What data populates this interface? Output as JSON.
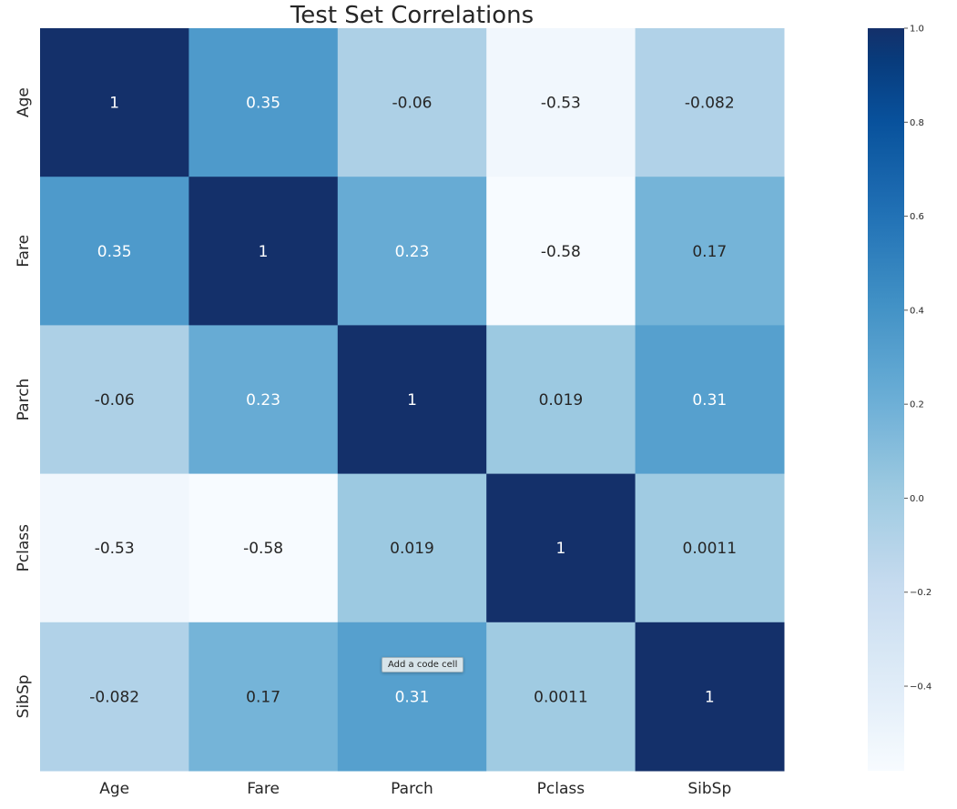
{
  "chart_data": {
    "type": "heatmap",
    "title": "Test Set Correlations",
    "rows": [
      "Age",
      "Fare",
      "Parch",
      "Pclass",
      "SibSp"
    ],
    "columns": [
      "Age",
      "Fare",
      "Parch",
      "Pclass",
      "SibSp"
    ],
    "values": [
      [
        1,
        0.35,
        -0.06,
        -0.53,
        -0.082
      ],
      [
        0.35,
        1,
        0.23,
        -0.58,
        0.17
      ],
      [
        -0.06,
        0.23,
        1,
        0.019,
        0.31
      ],
      [
        -0.53,
        -0.58,
        0.019,
        1,
        0.0011
      ],
      [
        -0.082,
        0.17,
        0.31,
        0.0011,
        1
      ]
    ],
    "annotations": [
      [
        "1",
        "0.35",
        "-0.06",
        "-0.53",
        "-0.082"
      ],
      [
        "0.35",
        "1",
        "0.23",
        "-0.58",
        "0.17"
      ],
      [
        "-0.06",
        "0.23",
        "1",
        "0.019",
        "0.31"
      ],
      [
        "-0.53",
        "-0.58",
        "0.019",
        "1",
        "0.0011"
      ],
      [
        "-0.082",
        "0.17",
        "0.31",
        "0.0011",
        "1"
      ]
    ],
    "colormap": "Blues",
    "colormap_stops": [
      "#f7fbff",
      "#deebf7",
      "#c6dbef",
      "#9ecae1",
      "#6baed6",
      "#4292c6",
      "#2171b5",
      "#08519c",
      "#08306b"
    ],
    "vmin": -0.58,
    "vmax": 1.0,
    "colorbar": {
      "ticks": [
        1.0,
        0.8,
        0.6,
        0.4,
        0.2,
        0.0,
        -0.2,
        -0.4
      ],
      "tick_labels": [
        "1.0",
        "0.8",
        "0.6",
        "0.4",
        "0.2",
        "0.0",
        "−0.2",
        "−0.4"
      ]
    },
    "colors": {
      "dark_text": "#262626",
      "light_text": "#ffffff",
      "cell_max": "#14306a"
    }
  },
  "tooltip": {
    "label": "Add a code cell"
  }
}
